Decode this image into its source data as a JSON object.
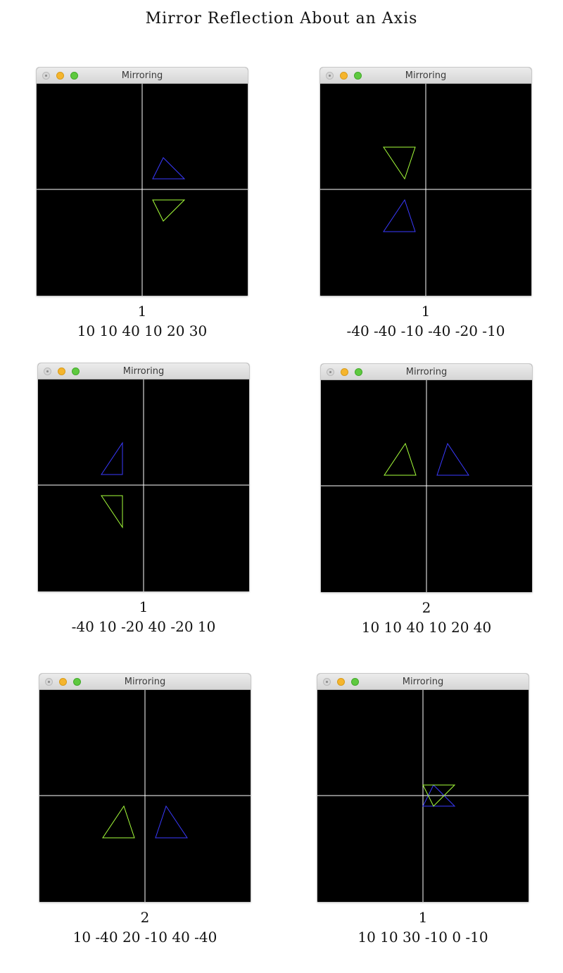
{
  "page_title": "Mirror Reflection About an Axis",
  "panels": [
    {
      "window_title": "Mirroring",
      "axis_choice": "1",
      "coords": "10 10 40 10 20 30",
      "original_color": "#3a3aff",
      "mirrored_color": "#a6ff3a"
    },
    {
      "window_title": "Mirroring",
      "axis_choice": "1",
      "coords": "-40 -40 -10 -40 -20 -10",
      "original_color": "#3a3aff",
      "mirrored_color": "#a6ff3a"
    },
    {
      "window_title": "Mirroring",
      "axis_choice": "1",
      "coords": "-40 10 -20 40 -20 10",
      "original_color": "#3a3aff",
      "mirrored_color": "#a6ff3a"
    },
    {
      "window_title": "Mirroring",
      "axis_choice": "2",
      "coords": "10 10 40 10 20 40",
      "original_color": "#3a3aff",
      "mirrored_color": "#a6ff3a"
    },
    {
      "window_title": "Mirroring",
      "axis_choice": "2",
      "coords": "10 -40 20 -10 40 -40",
      "original_color": "#3a3aff",
      "mirrored_color": "#a6ff3a"
    },
    {
      "window_title": "Mirroring",
      "axis_choice": "1",
      "coords": "10 10 30 -10 0 -10",
      "original_color": "#3a3aff",
      "mirrored_color": "#a6ff3a"
    }
  ],
  "axis_color": "#ffffff",
  "window_icons": {
    "close": "close-icon",
    "minimize": "minimize-icon",
    "maximize": "maximize-icon"
  }
}
